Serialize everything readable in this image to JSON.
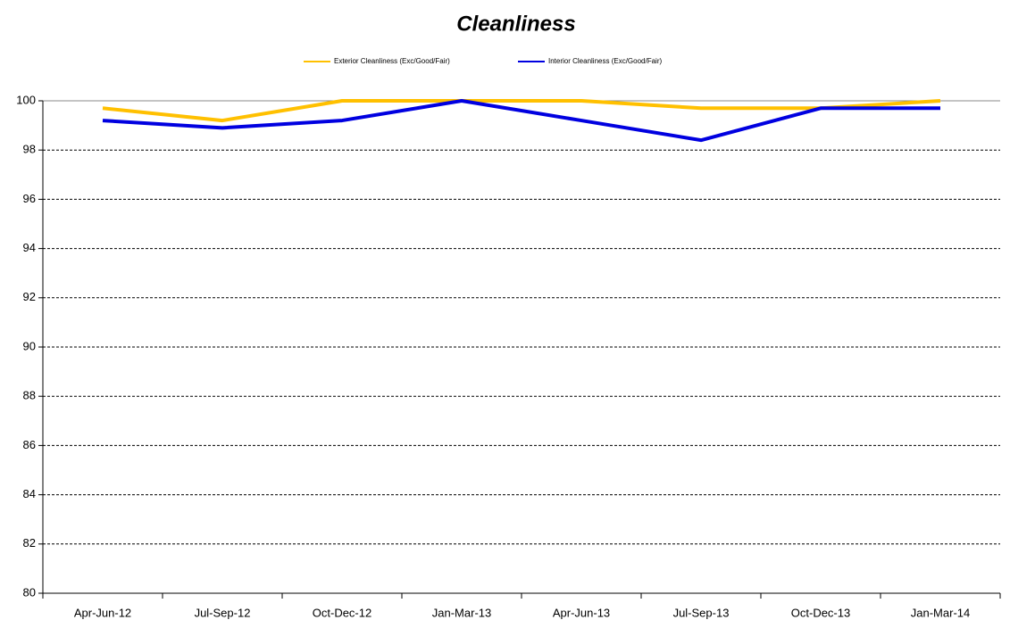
{
  "chart_data": {
    "type": "line",
    "title": "Cleanliness",
    "categories": [
      "Apr-Jun-12",
      "Jul-Sep-12",
      "Oct-Dec-12",
      "Jan-Mar-13",
      "Apr-Jun-13",
      "Jul-Sep-13",
      "Oct-Dec-13",
      "Jan-Mar-14"
    ],
    "series": [
      {
        "name": "Exterior Cleanliness (Exc/Good/Fair)",
        "color": "#ffc000",
        "values": [
          99.7,
          99.2,
          100,
          100,
          100,
          99.7,
          99.7,
          100
        ]
      },
      {
        "name": "Interior Cleanliness (Exc/Good/Fair)",
        "color": "#0000e0",
        "values": [
          99.2,
          98.9,
          99.2,
          100,
          99.2,
          98.4,
          99.7,
          99.7
        ]
      }
    ],
    "ylim": [
      80,
      100
    ],
    "yticks": [
      80,
      82,
      84,
      86,
      88,
      90,
      92,
      94,
      96,
      98,
      100
    ],
    "grid": true,
    "legend": "top"
  }
}
